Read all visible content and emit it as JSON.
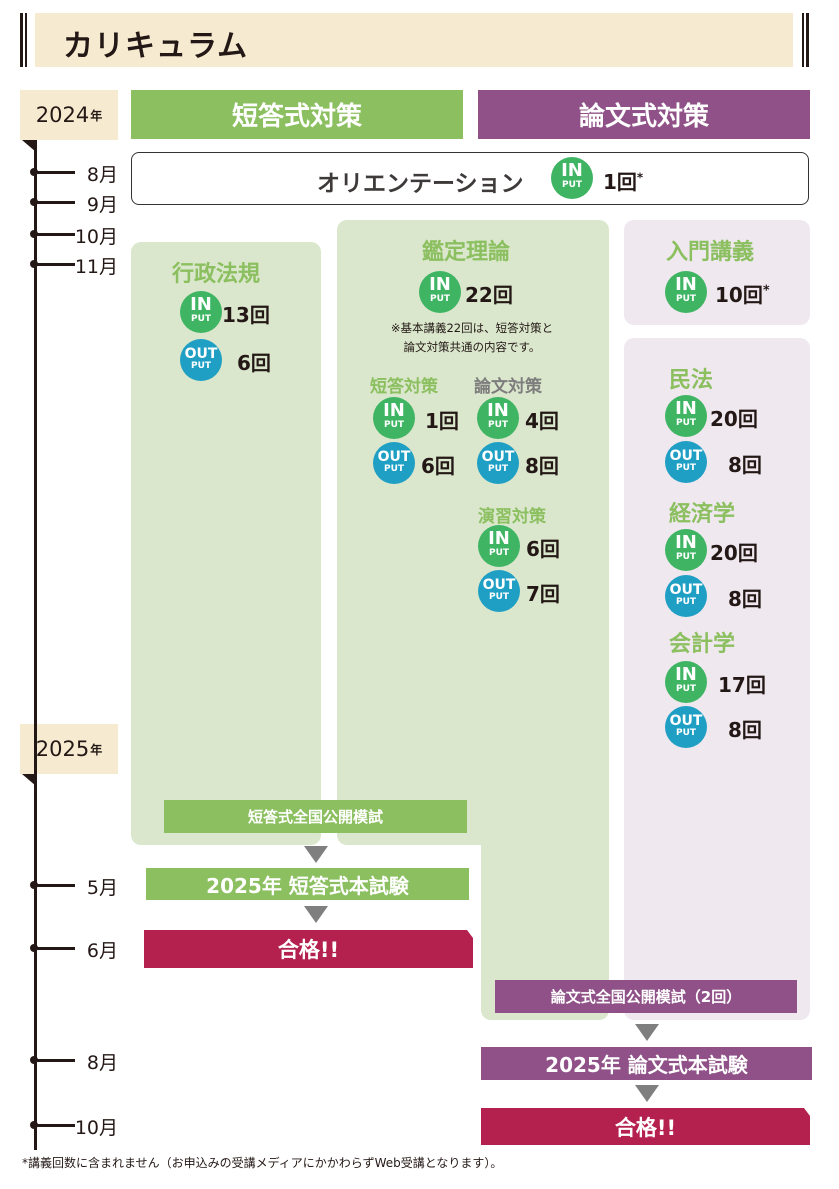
{
  "title": "カリキュラム",
  "year_suffix": "年",
  "years": [
    "2024",
    "2025"
  ],
  "tracks": {
    "short": "短答式対策",
    "essay": "論文式対策"
  },
  "badge": {
    "in_top": "IN",
    "out_top": "OUT",
    "bottom": "PUT"
  },
  "orientation": {
    "label": "オリエンテーション",
    "count": "1回",
    "mark": "*"
  },
  "months_2024": [
    "8月",
    "9月",
    "10月",
    "11月"
  ],
  "months_2025": [
    "5月",
    "6月",
    "8月",
    "10月"
  ],
  "gyosei": {
    "title": "行政法規",
    "input": "13回",
    "output": "6回"
  },
  "kantei": {
    "title": "鑑定理論",
    "input": "22回",
    "note_line1": "※基本講義22回は、短答対策と",
    "note_line2": "論文対策共通の内容です。",
    "tanto": {
      "title": "短答対策",
      "input": "1回",
      "output": "6回"
    },
    "ronbun": {
      "title": "論文対策",
      "input": "4回",
      "output": "8回"
    },
    "ensyu": {
      "title": "演習対策",
      "input": "6回",
      "output": "7回"
    }
  },
  "nyumon": {
    "title": "入門講義",
    "input": "10回",
    "mark": "*"
  },
  "minpo": {
    "title": "民法",
    "input": "20回",
    "output": "8回"
  },
  "keizai": {
    "title": "経済学",
    "input": "20回",
    "output": "8回"
  },
  "kaikei": {
    "title": "会計学",
    "input": "17回",
    "output": "8回"
  },
  "milestones": {
    "short_mock": "短答式全国公開模試",
    "short_exam": "2025年 短答式本試験",
    "short_pass": "合格!!",
    "essay_mock": "論文式全国公開模試（2回）",
    "essay_exam": "2025年 論文式本試験",
    "essay_pass": "合格!!"
  },
  "footnote": "*講義回数に含まれません（お申込みの受講メディアにかかわらずWeb受講となります）。",
  "colors": {
    "short": "#8bbf5f",
    "essay": "#8f5187",
    "input": "#3fb564",
    "output": "#1f9fc4",
    "pass": "#b5214f",
    "light_green": "#dae7cc",
    "light_purple": "#efe8ef",
    "header_bg": "#f6ebd0"
  }
}
